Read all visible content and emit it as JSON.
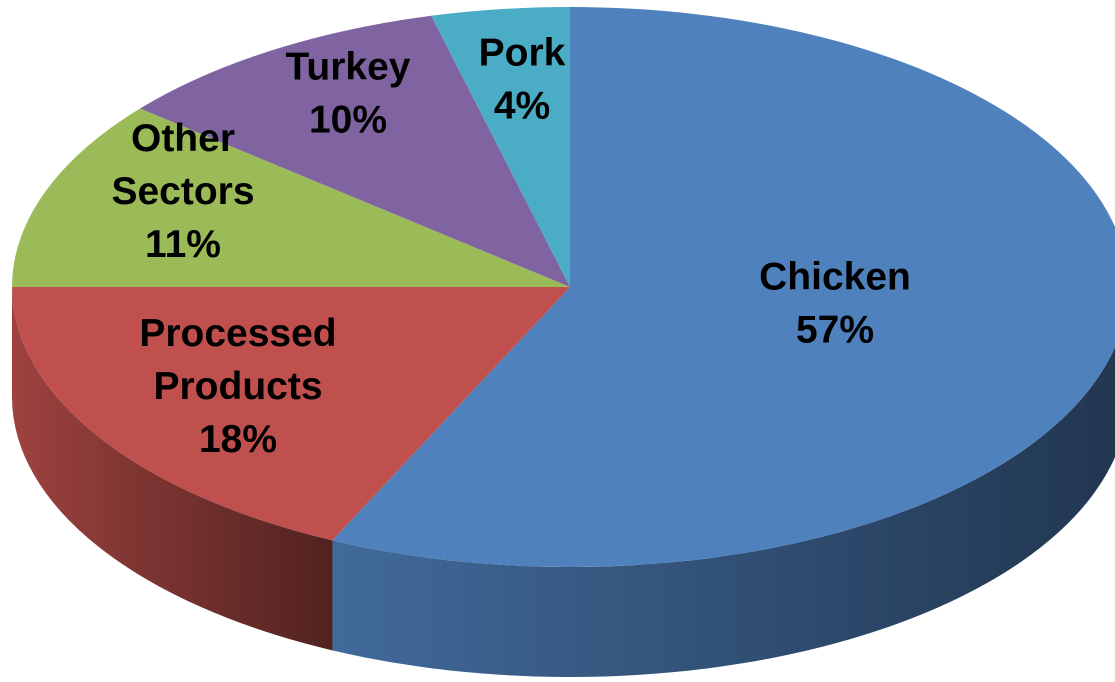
{
  "chart_data": {
    "type": "pie",
    "title": "",
    "style": "3d",
    "slices": [
      {
        "label_lines": [
          "Chicken"
        ],
        "value": 57,
        "color": "#4f81bd"
      },
      {
        "label_lines": [
          "Processed",
          "Products"
        ],
        "value": 18,
        "color": "#c0504d"
      },
      {
        "label_lines": [
          "Other",
          "Sectors"
        ],
        "value": 11,
        "color": "#9bbb59"
      },
      {
        "label_lines": [
          "Turkey"
        ],
        "value": 10,
        "color": "#8064a2"
      },
      {
        "label_lines": [
          "Pork"
        ],
        "value": 4,
        "color": "#4bacc6"
      }
    ],
    "value_suffix": "%",
    "legend": "none"
  }
}
